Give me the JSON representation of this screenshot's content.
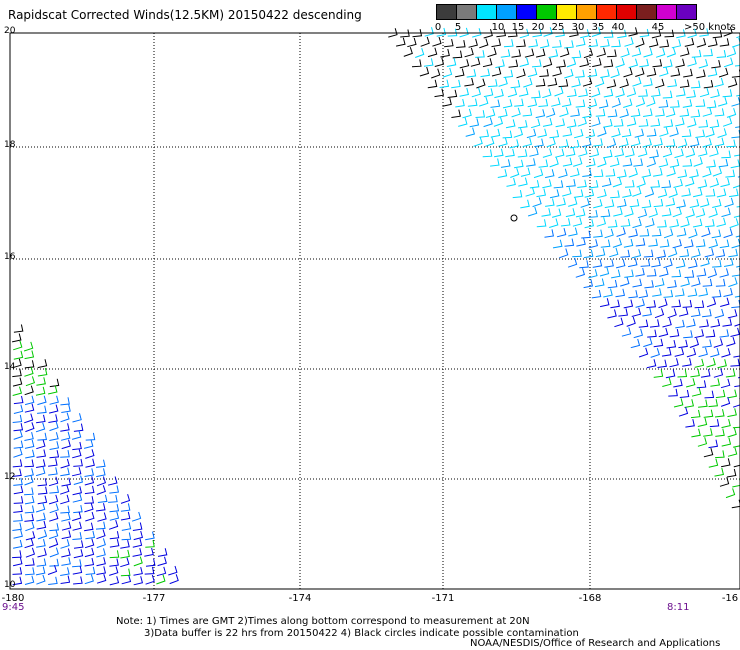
{
  "title": "Rapidscat Corrected Winds(12.5KM) 20150422 descending",
  "legend": {
    "unit_label": ">50 knots",
    "bins": [
      {
        "label": "0",
        "color": "#3c3c3c"
      },
      {
        "label": "5",
        "color": "#7a7a7a"
      },
      {
        "label": "",
        "color": "#00e5ff"
      },
      {
        "label": "10",
        "color": "#00a0ff"
      },
      {
        "label": "15",
        "color": "#0000ff"
      },
      {
        "label": "20",
        "color": "#00c800"
      },
      {
        "label": "25",
        "color": "#ffea00"
      },
      {
        "label": "30",
        "color": "#ffa000"
      },
      {
        "label": "35",
        "color": "#ff2800"
      },
      {
        "label": "40",
        "color": "#e00000"
      },
      {
        "label": "",
        "color": "#7a1e1e"
      },
      {
        "label": "45",
        "color": "#d000d0"
      },
      {
        "label": "",
        "color": "#6a00c0"
      }
    ]
  },
  "map": {
    "lat_ticks": [
      "20",
      "18",
      "16",
      "14",
      "12",
      "10"
    ],
    "lon_ticks": [
      "-180",
      "-177",
      "-174",
      "-171",
      "-168",
      "-16"
    ],
    "time_left": "9:45",
    "time_right": "8:11",
    "lat_range": [
      10,
      20
    ],
    "lon_range": [
      -180,
      -165
    ]
  },
  "notes": {
    "line1": "Note: 1) Times are GMT 2)Times along bottom correspond to measurement at 20N",
    "line2": "3)Data buffer is 22 hrs from 20150422 4) Black circles indicate possible contamination"
  },
  "credit": "NOAA/NESDIS/Office of Research and Applications"
}
